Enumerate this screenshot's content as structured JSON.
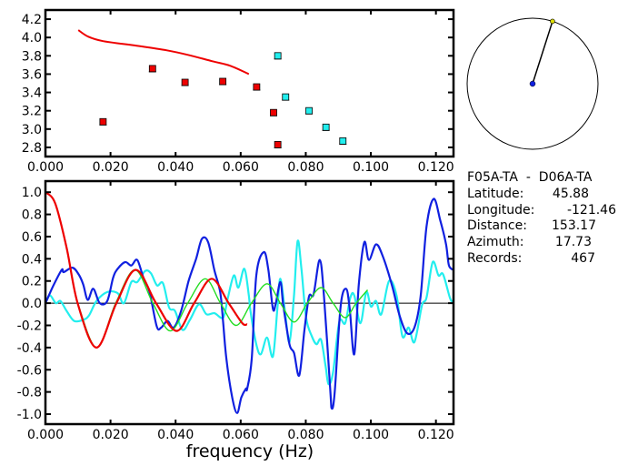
{
  "colors": {
    "red": "#ee0000",
    "green": "#22dd22",
    "blue": "#1020e0",
    "cyan": "#22eeee",
    "axis": "#000000"
  },
  "info": {
    "title": "F05A-TA  -  D06A-TA",
    "latitude_label": "Latitude:",
    "latitude": "45.88",
    "longitude_label": "Longitude:",
    "longitude": "-121.46",
    "distance_label": "Distance:",
    "distance": "153.17",
    "azimuth_label": "Azimuth:",
    "azimuth": "17.73",
    "records_label": "Records:",
    "records": "467"
  },
  "azimuth_deg": 17.73,
  "chart_data": [
    {
      "type": "scatter",
      "title": "",
      "xlabel": "",
      "ylabel": "",
      "xlim": [
        0,
        0.1254
      ],
      "ylim": [
        2.7,
        4.3
      ],
      "xticks": [
        "0.000",
        "0.020",
        "0.040",
        "0.060",
        "0.080",
        "0.100",
        "0.120"
      ],
      "yticks": [
        "2.8",
        "3.0",
        "3.2",
        "3.4",
        "3.6",
        "3.8",
        "4.0",
        "4.2"
      ],
      "series": [
        {
          "name": "red-points",
          "color": "red",
          "kind": "squares",
          "x": [
            0.0177,
            0.0329,
            0.0429,
            0.0545,
            0.0649,
            0.0701,
            0.0714
          ],
          "y": [
            3.08,
            3.66,
            3.51,
            3.52,
            3.46,
            3.18,
            2.83
          ]
        },
        {
          "name": "cyan-points",
          "color": "cyan",
          "kind": "squares",
          "x": [
            0.0714,
            0.0738,
            0.081,
            0.0862,
            0.0914
          ],
          "y": [
            3.8,
            3.35,
            3.2,
            3.02,
            2.87
          ]
        },
        {
          "name": "red-curve",
          "color": "red",
          "kind": "line",
          "x": [
            0.0101,
            0.0131,
            0.0177,
            0.028,
            0.0373,
            0.0438,
            0.0513,
            0.0569,
            0.0625
          ],
          "y": [
            4.08,
            4.01,
            3.96,
            3.91,
            3.86,
            3.81,
            3.74,
            3.69,
            3.6
          ]
        }
      ]
    },
    {
      "type": "line",
      "title": "",
      "xlabel": "frequency (Hz)",
      "ylabel": "",
      "xlim": [
        0,
        0.1254
      ],
      "ylim": [
        -1.09,
        1.1
      ],
      "xticks": [
        "0.000",
        "0.020",
        "0.040",
        "0.060",
        "0.080",
        "0.100",
        "0.120"
      ],
      "yticks": [
        "-1.0",
        "-0.8",
        "-0.6",
        "-0.4",
        "-0.2",
        "0.0",
        "0.2",
        "0.4",
        "0.6",
        "0.8",
        "1.0"
      ],
      "series": [
        {
          "name": "cyan",
          "color": "cyan",
          "width": 2.2,
          "x": [
            0,
            0.0014,
            0.0032,
            0.0046,
            0.0065,
            0.0088,
            0.0116,
            0.0134,
            0.0157,
            0.019,
            0.0222,
            0.0241,
            0.0264,
            0.0282,
            0.0306,
            0.0324,
            0.0343,
            0.0361,
            0.038,
            0.0398,
            0.0421,
            0.0444,
            0.0472,
            0.0495,
            0.0519,
            0.0546,
            0.056,
            0.0579,
            0.0593,
            0.0611,
            0.0625,
            0.063,
            0.0648,
            0.0662,
            0.0681,
            0.0699,
            0.0713,
            0.0722,
            0.0736,
            0.075,
            0.0764,
            0.0775,
            0.0787,
            0.0801,
            0.0819,
            0.0833,
            0.0847,
            0.0861,
            0.087,
            0.0884,
            0.0903,
            0.0921,
            0.0937,
            0.0949,
            0.0968,
            0.0986,
            0.1,
            0.1016,
            0.1032,
            0.1056,
            0.1079,
            0.1097,
            0.1116,
            0.1134,
            0.1157,
            0.1171,
            0.119,
            0.1208,
            0.1222,
            0.1244,
            0.1254
          ],
          "y": [
            0,
            0.07,
            0,
            0.02,
            -0.07,
            -0.16,
            -0.15,
            -0.11,
            0.02,
            0.1,
            0.09,
            0,
            0.19,
            0.19,
            0.29,
            0.27,
            0.16,
            0.18,
            -0.04,
            -0.07,
            -0.24,
            -0.15,
            -0.01,
            -0.1,
            -0.09,
            -0.13,
            0.04,
            0.25,
            0.14,
            0.31,
            0.07,
            -0.07,
            -0.37,
            -0.46,
            -0.31,
            -0.48,
            -0.04,
            0.22,
            -0.07,
            -0.35,
            0.08,
            0.56,
            0.3,
            -0.13,
            -0.3,
            -0.37,
            -0.33,
            -0.57,
            -0.73,
            -0.62,
            -0.17,
            -0.18,
            0.05,
            0.07,
            -0.18,
            0.1,
            -0.03,
            0.02,
            -0.1,
            0.2,
            0.07,
            -0.3,
            -0.22,
            -0.35,
            -0.02,
            0.05,
            0.37,
            0.25,
            0.26,
            0.04,
            0.02
          ]
        },
        {
          "name": "blue",
          "color": "blue",
          "width": 2.2,
          "x": [
            0,
            0.0023,
            0.005,
            0.0056,
            0.0083,
            0.0102,
            0.0116,
            0.013,
            0.0147,
            0.0167,
            0.019,
            0.0208,
            0.0222,
            0.0245,
            0.0264,
            0.0282,
            0.0301,
            0.032,
            0.0342,
            0.0356,
            0.0375,
            0.0394,
            0.0417,
            0.044,
            0.0463,
            0.0481,
            0.05,
            0.0519,
            0.0537,
            0.0546,
            0.0556,
            0.0574,
            0.0589,
            0.0602,
            0.0616,
            0.062,
            0.0634,
            0.0648,
            0.0671,
            0.0685,
            0.0699,
            0.0708,
            0.0722,
            0.0731,
            0.075,
            0.0764,
            0.078,
            0.0796,
            0.081,
            0.0824,
            0.0843,
            0.0856,
            0.0875,
            0.088,
            0.0889,
            0.0907,
            0.0924,
            0.0935,
            0.0949,
            0.0963,
            0.098,
            0.0994,
            0.1016,
            0.1037,
            0.1065,
            0.1088,
            0.1111,
            0.1134,
            0.1153,
            0.1171,
            0.1193,
            0.1213,
            0.1231,
            0.124,
            0.1254
          ],
          "y": [
            0,
            0.15,
            0.3,
            0.28,
            0.32,
            0.26,
            0.17,
            0.03,
            0.13,
            0,
            0.02,
            0.23,
            0.31,
            0.37,
            0.34,
            0.39,
            0.23,
            0.1,
            -0.21,
            -0.22,
            -0.16,
            -0.22,
            -0.07,
            0.2,
            0.4,
            0.58,
            0.55,
            0.3,
            0.1,
            -0.17,
            -0.5,
            -0.85,
            -0.99,
            -0.85,
            -0.77,
            -0.77,
            -0.5,
            0.25,
            0.46,
            0.3,
            -0.05,
            0,
            0.19,
            -0.02,
            -0.37,
            -0.45,
            -0.65,
            -0.24,
            0.06,
            0.08,
            0.39,
            0.06,
            -0.77,
            -0.95,
            -0.8,
            -0.03,
            0.13,
            -0.05,
            -0.46,
            0.17,
            0.55,
            0.39,
            0.53,
            0.42,
            0.16,
            -0.11,
            -0.27,
            -0.22,
            0.06,
            0.69,
            0.94,
            0.75,
            0.53,
            0.34,
            0.3
          ]
        },
        {
          "name": "green",
          "color": "green",
          "width": 1.4,
          "x": [
            0.0099,
            0.0157,
            0.0216,
            0.0275,
            0.033,
            0.0384,
            0.0437,
            0.0491,
            0.0538,
            0.0586,
            0.0633,
            0.0681,
            0.0722,
            0.0764,
            0.0805,
            0.0847,
            0.0884,
            0.0921,
            0.0955,
            0.099
          ],
          "y": [
            0,
            -0.4,
            0,
            0.3,
            0,
            -0.25,
            0,
            0.22,
            0,
            -0.2,
            0,
            0.175,
            0,
            -0.17,
            0,
            0.14,
            0,
            -0.13,
            0,
            0.12
          ]
        },
        {
          "name": "red",
          "color": "red",
          "width": 2.2,
          "x": [
            0,
            0.003,
            0.0065,
            0.0099,
            0.0157,
            0.0218,
            0.0278,
            0.034,
            0.0403,
            0.0457,
            0.0511,
            0.0563,
            0.0605,
            0.062
          ],
          "y": [
            1.0,
            0.9,
            0.5,
            0,
            -0.4,
            0,
            0.3,
            0,
            -0.25,
            0,
            0.22,
            0,
            -0.18,
            -0.19
          ]
        }
      ]
    }
  ]
}
